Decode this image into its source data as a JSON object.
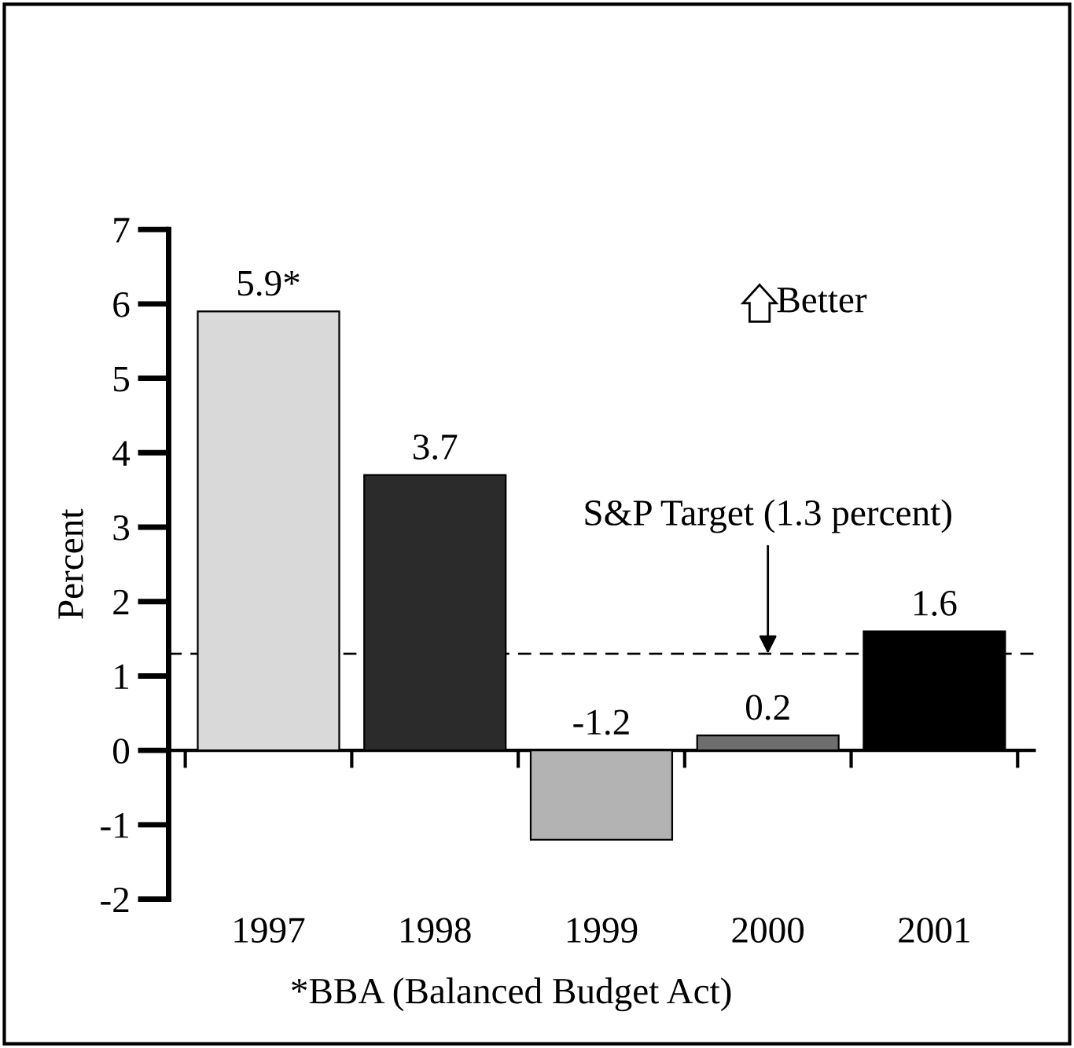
{
  "chart_data": {
    "type": "bar",
    "ylabel": "Percent",
    "categories": [
      "1997",
      "1998",
      "1999",
      "2000",
      "2001"
    ],
    "values": [
      5.9,
      3.7,
      -1.2,
      0.2,
      1.6
    ],
    "colors": [
      "#d9d9d9",
      "#2b2b2b",
      "#b3b3b3",
      "#6e6e6e",
      "#000000"
    ],
    "value_labels": [
      "5.9*",
      "3.7",
      "-1.2",
      "0.2",
      "1.6"
    ],
    "ylim": [
      -2,
      7
    ],
    "yticks": [
      -2,
      -1,
      0,
      1,
      2,
      3,
      4,
      5,
      6,
      7
    ],
    "ref_lines": [
      {
        "axis": "y",
        "value": 1.3,
        "label": "S&P Target (1.3 percent)",
        "line_style": "dashed",
        "color": "#000000"
      }
    ],
    "annotations": [
      "Better",
      "*BBA (Balanced Budget Act)"
    ]
  }
}
